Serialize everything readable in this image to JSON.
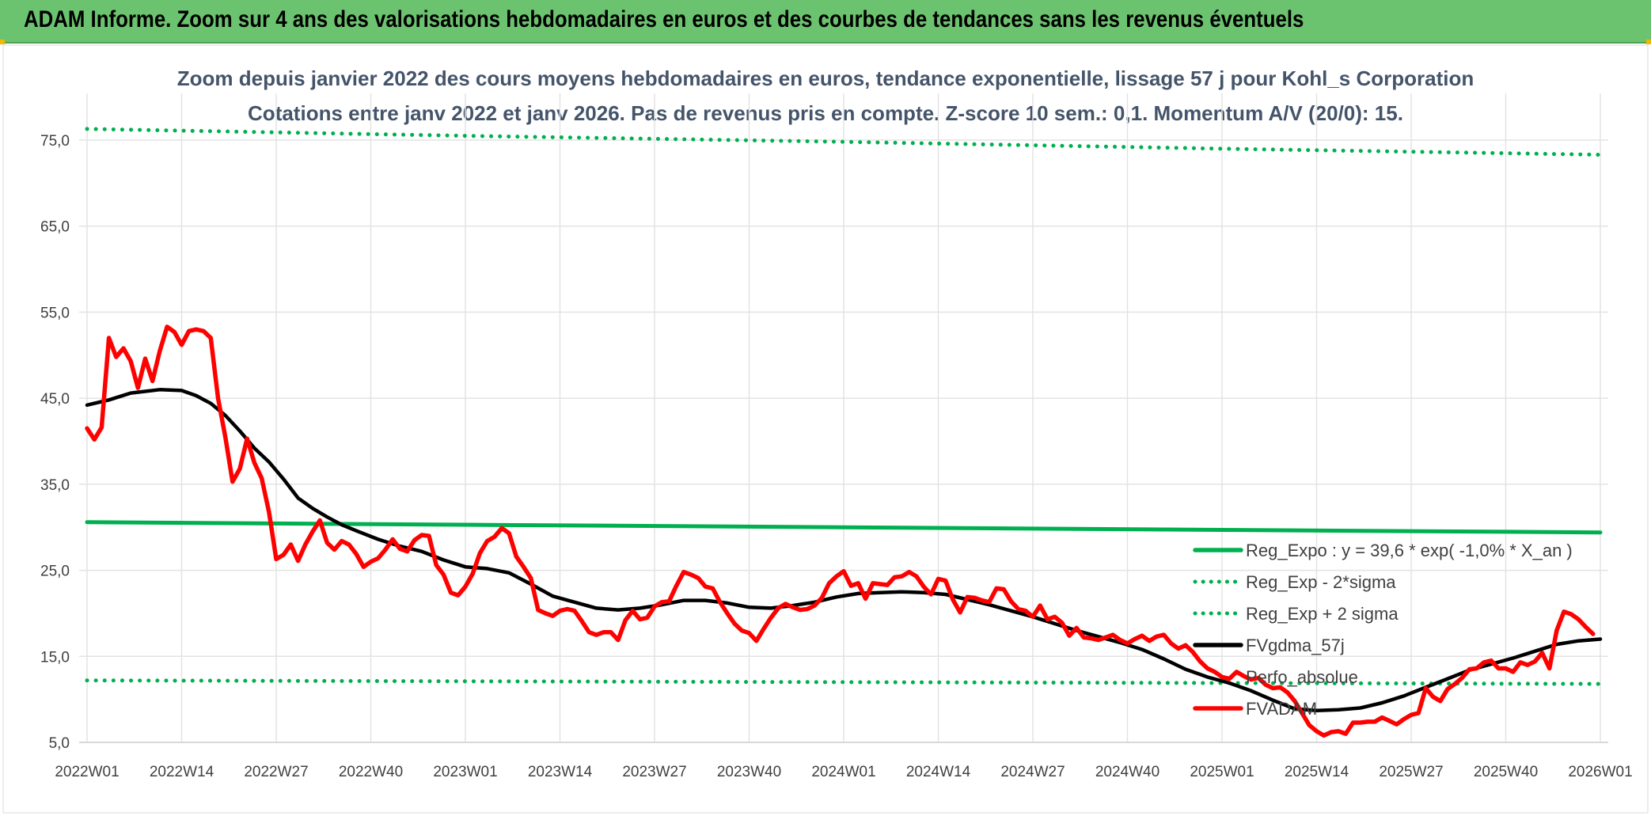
{
  "header": {
    "title": "ADAM Informe. Zoom sur 4 ans des valorisations hebdomadaires en euros et des courbes de tendances sans les revenus éventuels"
  },
  "chart_data": {
    "type": "line",
    "title": "Zoom depuis janvier 2022 des cours moyens hebdomadaires en euros, tendance exponentielle, lissage 57 j pour Kohl_s Corporation",
    "subtitle": "Cotations entre janv 2022 et janv 2026. Pas de revenus pris en compte. Z-score 10 sem.: 0,1. Momentum A/V (20/0): 15.",
    "xlabel": "",
    "ylabel": "",
    "ylim": [
      5,
      80
    ],
    "yticks": [
      "5,0",
      "15,0",
      "25,0",
      "35,0",
      "45,0",
      "55,0",
      "65,0",
      "75,0"
    ],
    "ytick_values": [
      5,
      15,
      25,
      35,
      45,
      55,
      65,
      75
    ],
    "xticks": [
      "2022W01",
      "2022W14",
      "2022W27",
      "2022W40",
      "2023W01",
      "2023W14",
      "2023W27",
      "2023W40",
      "2024W01",
      "2024W14",
      "2024W27",
      "2024W40",
      "2025W01",
      "2025W14",
      "2025W27",
      "2025W40",
      "2026W01"
    ],
    "grid": true,
    "legend_position": "bottom-right",
    "series": [
      {
        "name": "Reg_Expo : y = 39,6 * exp( -1,0% *  X_an )",
        "style": "solid",
        "color": "#00b050",
        "anchors": [
          [
            0,
            30.6
          ],
          [
            52,
            30.3
          ],
          [
            104,
            30.0
          ],
          [
            156,
            29.7
          ],
          [
            208,
            29.4
          ]
        ]
      },
      {
        "name": "Reg_Exp - 2*sigma",
        "style": "dotted",
        "color": "#00b050",
        "anchors": [
          [
            0,
            12.2
          ],
          [
            52,
            12.1
          ],
          [
            104,
            12.0
          ],
          [
            156,
            11.9
          ],
          [
            208,
            11.8
          ]
        ]
      },
      {
        "name": "Reg_Exp + 2 sigma",
        "style": "dotted",
        "color": "#00b050",
        "anchors": [
          [
            0,
            76.3
          ],
          [
            52,
            75.5
          ],
          [
            104,
            74.8
          ],
          [
            156,
            74.0
          ],
          [
            208,
            73.3
          ]
        ]
      },
      {
        "name": "FVgdma_57j",
        "style": "solid",
        "color": "#000000",
        "anchors": [
          [
            0,
            44.2
          ],
          [
            3,
            44.8
          ],
          [
            6,
            45.6
          ],
          [
            10,
            46.0
          ],
          [
            13,
            45.9
          ],
          [
            15,
            45.3
          ],
          [
            17,
            44.4
          ],
          [
            19,
            43.0
          ],
          [
            21,
            41.2
          ],
          [
            23,
            39.2
          ],
          [
            25,
            37.6
          ],
          [
            27,
            35.6
          ],
          [
            29,
            33.4
          ],
          [
            31,
            32.2
          ],
          [
            33,
            31.2
          ],
          [
            35,
            30.3
          ],
          [
            37,
            29.6
          ],
          [
            40,
            28.6
          ],
          [
            43,
            27.8
          ],
          [
            46,
            27.2
          ],
          [
            49,
            26.2
          ],
          [
            52,
            25.4
          ],
          [
            55,
            25.2
          ],
          [
            58,
            24.7
          ],
          [
            61,
            23.4
          ],
          [
            64,
            22.0
          ],
          [
            67,
            21.3
          ],
          [
            70,
            20.6
          ],
          [
            73,
            20.4
          ],
          [
            76,
            20.6
          ],
          [
            79,
            21.0
          ],
          [
            82,
            21.5
          ],
          [
            85,
            21.5
          ],
          [
            88,
            21.2
          ],
          [
            91,
            20.7
          ],
          [
            94,
            20.6
          ],
          [
            97,
            20.9
          ],
          [
            100,
            21.3
          ],
          [
            103,
            21.9
          ],
          [
            106,
            22.3
          ],
          [
            109,
            22.4
          ],
          [
            112,
            22.5
          ],
          [
            115,
            22.4
          ],
          [
            118,
            22.2
          ],
          [
            121,
            21.6
          ],
          [
            124,
            21.0
          ],
          [
            127,
            20.3
          ],
          [
            130,
            19.6
          ],
          [
            133,
            18.8
          ],
          [
            136,
            18.0
          ],
          [
            139,
            17.3
          ],
          [
            142,
            16.6
          ],
          [
            145,
            15.8
          ],
          [
            148,
            14.7
          ],
          [
            151,
            13.5
          ],
          [
            154,
            12.6
          ],
          [
            157,
            11.9
          ],
          [
            160,
            11.0
          ],
          [
            163,
            9.9
          ],
          [
            166,
            8.9
          ],
          [
            169,
            8.7
          ],
          [
            172,
            8.8
          ],
          [
            175,
            9.0
          ],
          [
            178,
            9.6
          ],
          [
            181,
            10.4
          ],
          [
            184,
            11.4
          ],
          [
            187,
            12.4
          ],
          [
            190,
            13.4
          ],
          [
            193,
            14.1
          ],
          [
            196,
            14.8
          ],
          [
            199,
            15.6
          ],
          [
            202,
            16.4
          ],
          [
            205,
            16.8
          ],
          [
            208,
            17.0
          ]
        ]
      },
      {
        "name": "Perfo_absolue",
        "style": "none",
        "color": "#a6a6a6",
        "anchors": []
      },
      {
        "name": "FVADAM",
        "style": "solid",
        "color": "#ff0000",
        "anchors": [
          [
            0,
            41.5
          ],
          [
            1,
            40.2
          ],
          [
            2,
            41.6
          ],
          [
            3,
            52.0
          ],
          [
            4,
            49.8
          ],
          [
            5,
            50.8
          ],
          [
            6,
            49.3
          ],
          [
            7,
            46.2
          ],
          [
            8,
            49.6
          ],
          [
            9,
            47.0
          ],
          [
            10,
            50.5
          ],
          [
            11,
            53.3
          ],
          [
            12,
            52.7
          ],
          [
            13,
            51.2
          ],
          [
            14,
            52.8
          ],
          [
            15,
            53.0
          ],
          [
            16,
            52.8
          ],
          [
            17,
            52.0
          ],
          [
            18,
            45.0
          ],
          [
            19,
            40.5
          ],
          [
            20,
            35.3
          ],
          [
            21,
            36.8
          ],
          [
            22,
            40.3
          ],
          [
            23,
            37.5
          ],
          [
            24,
            35.7
          ],
          [
            25,
            31.8
          ],
          [
            26,
            26.3
          ],
          [
            27,
            26.8
          ],
          [
            28,
            28.0
          ],
          [
            29,
            26.1
          ],
          [
            30,
            28.0
          ],
          [
            31,
            29.5
          ],
          [
            32,
            30.8
          ],
          [
            33,
            28.2
          ],
          [
            34,
            27.4
          ],
          [
            35,
            28.4
          ],
          [
            36,
            28.0
          ],
          [
            37,
            26.9
          ],
          [
            38,
            25.4
          ],
          [
            39,
            26.0
          ],
          [
            40,
            26.4
          ],
          [
            41,
            27.4
          ],
          [
            42,
            28.6
          ],
          [
            43,
            27.5
          ],
          [
            44,
            27.2
          ],
          [
            45,
            28.5
          ],
          [
            46,
            29.1
          ],
          [
            47,
            29.0
          ],
          [
            48,
            25.6
          ],
          [
            49,
            24.5
          ],
          [
            50,
            22.4
          ],
          [
            51,
            22.1
          ],
          [
            52,
            23.1
          ],
          [
            53,
            24.6
          ],
          [
            54,
            27.0
          ],
          [
            55,
            28.4
          ],
          [
            56,
            28.9
          ],
          [
            57,
            29.9
          ],
          [
            58,
            29.3
          ],
          [
            59,
            26.6
          ],
          [
            60,
            25.4
          ],
          [
            61,
            24.1
          ],
          [
            62,
            20.4
          ],
          [
            63,
            20.0
          ],
          [
            64,
            19.7
          ],
          [
            65,
            20.3
          ],
          [
            66,
            20.5
          ],
          [
            67,
            20.3
          ],
          [
            68,
            19.1
          ],
          [
            69,
            17.8
          ],
          [
            70,
            17.5
          ],
          [
            71,
            17.8
          ],
          [
            72,
            17.8
          ],
          [
            73,
            16.9
          ],
          [
            74,
            19.2
          ],
          [
            75,
            20.3
          ],
          [
            76,
            19.3
          ],
          [
            77,
            19.5
          ],
          [
            78,
            20.8
          ],
          [
            79,
            21.3
          ],
          [
            80,
            21.4
          ],
          [
            81,
            23.2
          ],
          [
            82,
            24.8
          ],
          [
            83,
            24.5
          ],
          [
            84,
            24.1
          ],
          [
            85,
            23.1
          ],
          [
            86,
            22.9
          ],
          [
            87,
            21.3
          ],
          [
            88,
            20.0
          ],
          [
            89,
            18.8
          ],
          [
            90,
            18.0
          ],
          [
            91,
            17.7
          ],
          [
            92,
            16.8
          ],
          [
            93,
            18.2
          ],
          [
            94,
            19.5
          ],
          [
            95,
            20.6
          ],
          [
            96,
            21.1
          ],
          [
            97,
            20.7
          ],
          [
            98,
            20.4
          ],
          [
            99,
            20.5
          ],
          [
            100,
            20.9
          ],
          [
            101,
            21.8
          ],
          [
            102,
            23.5
          ],
          [
            103,
            24.3
          ],
          [
            104,
            24.9
          ],
          [
            105,
            23.2
          ],
          [
            106,
            23.5
          ],
          [
            107,
            21.7
          ],
          [
            108,
            23.5
          ],
          [
            109,
            23.4
          ],
          [
            110,
            23.3
          ],
          [
            111,
            24.2
          ],
          [
            112,
            24.3
          ],
          [
            113,
            24.8
          ],
          [
            114,
            24.3
          ],
          [
            115,
            23.1
          ],
          [
            116,
            22.2
          ],
          [
            117,
            24.0
          ],
          [
            118,
            23.8
          ],
          [
            119,
            21.6
          ],
          [
            120,
            20.1
          ],
          [
            121,
            21.9
          ],
          [
            122,
            21.8
          ],
          [
            123,
            21.5
          ],
          [
            124,
            21.3
          ],
          [
            125,
            22.9
          ],
          [
            126,
            22.8
          ],
          [
            127,
            21.4
          ],
          [
            128,
            20.5
          ],
          [
            129,
            20.3
          ],
          [
            130,
            19.6
          ],
          [
            131,
            20.9
          ],
          [
            132,
            19.3
          ],
          [
            133,
            19.6
          ],
          [
            134,
            18.9
          ],
          [
            135,
            17.4
          ],
          [
            136,
            18.3
          ],
          [
            137,
            17.2
          ],
          [
            138,
            17.1
          ],
          [
            139,
            16.9
          ],
          [
            140,
            17.2
          ],
          [
            141,
            17.5
          ],
          [
            142,
            16.9
          ],
          [
            143,
            16.5
          ],
          [
            144,
            17.0
          ],
          [
            145,
            17.4
          ],
          [
            146,
            16.8
          ],
          [
            147,
            17.3
          ],
          [
            148,
            17.5
          ],
          [
            149,
            16.5
          ],
          [
            150,
            15.9
          ],
          [
            151,
            16.3
          ],
          [
            152,
            15.5
          ],
          [
            153,
            14.4
          ],
          [
            154,
            13.6
          ],
          [
            155,
            13.2
          ],
          [
            156,
            12.6
          ],
          [
            157,
            12.4
          ],
          [
            158,
            13.2
          ],
          [
            159,
            12.7
          ],
          [
            160,
            12.3
          ],
          [
            161,
            12.5
          ],
          [
            162,
            11.7
          ],
          [
            163,
            11.3
          ],
          [
            164,
            11.4
          ],
          [
            165,
            10.8
          ],
          [
            166,
            9.8
          ],
          [
            167,
            8.4
          ],
          [
            168,
            7.0
          ],
          [
            169,
            6.3
          ],
          [
            170,
            5.8
          ],
          [
            171,
            6.2
          ],
          [
            172,
            6.3
          ],
          [
            173,
            6.0
          ],
          [
            174,
            7.3
          ],
          [
            175,
            7.3
          ],
          [
            176,
            7.4
          ],
          [
            177,
            7.4
          ],
          [
            178,
            7.9
          ],
          [
            179,
            7.5
          ],
          [
            180,
            7.1
          ],
          [
            181,
            7.7
          ],
          [
            182,
            8.2
          ],
          [
            183,
            8.4
          ],
          [
            184,
            11.3
          ],
          [
            185,
            10.3
          ],
          [
            186,
            9.8
          ],
          [
            187,
            11.2
          ],
          [
            188,
            11.8
          ],
          [
            189,
            12.5
          ],
          [
            190,
            13.5
          ],
          [
            191,
            13.6
          ],
          [
            192,
            14.3
          ],
          [
            193,
            14.5
          ],
          [
            194,
            13.6
          ],
          [
            195,
            13.6
          ],
          [
            196,
            13.2
          ],
          [
            197,
            14.3
          ],
          [
            198,
            14.0
          ],
          [
            199,
            14.4
          ],
          [
            200,
            15.4
          ],
          [
            201,
            13.6
          ],
          [
            202,
            18.0
          ],
          [
            203,
            20.2
          ],
          [
            204,
            19.9
          ],
          [
            205,
            19.3
          ],
          [
            206,
            18.4
          ],
          [
            207,
            17.6
          ]
        ]
      }
    ]
  }
}
